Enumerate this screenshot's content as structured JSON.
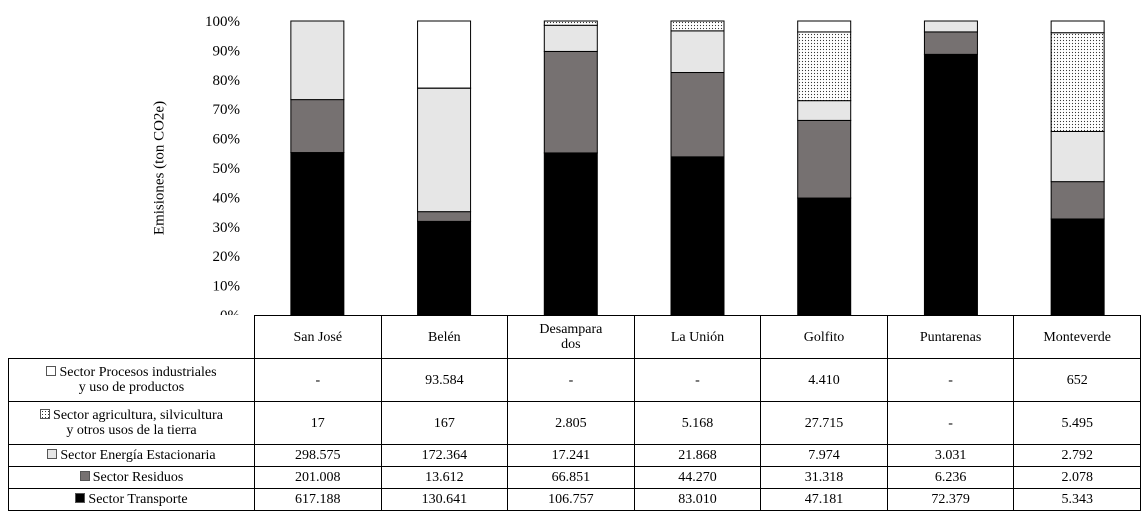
{
  "chart_data": {
    "type": "bar",
    "stacked": "percent",
    "ylabel": "Emisiones  (ton CO2e)",
    "ylim": [
      0,
      100
    ],
    "yticks": [
      "0%",
      "10%",
      "20%",
      "30%",
      "40%",
      "50%",
      "60%",
      "70%",
      "80%",
      "90%",
      "100%"
    ],
    "categories": [
      "San José",
      "Belén",
      "Desamparados",
      "La Unión",
      "Golfito",
      "Puntarenas",
      "Monteverde"
    ],
    "category_labels": [
      "San José",
      "Belén",
      "Desampara dos",
      "La Unión",
      "Golfito",
      "Puntarenas",
      "Monteverde"
    ],
    "series": [
      {
        "name": "Sector Transporte",
        "fill": "#000000",
        "values": [
          617188,
          130641,
          106757,
          83010,
          47181,
          72379,
          5343
        ],
        "labels": [
          "617.188",
          "130.641",
          "106.757",
          "83.010",
          "47.181",
          "72.379",
          "5.343"
        ]
      },
      {
        "name": "Sector Residuos",
        "fill": "#767171",
        "values": [
          201008,
          13612,
          66851,
          44270,
          31318,
          6236,
          2078
        ],
        "labels": [
          "201.008",
          "13.612",
          "66.851",
          "44.270",
          "31.318",
          "6.236",
          "2.078"
        ]
      },
      {
        "name": "Sector Energía Estacionaria",
        "fill": "#e6e6e6",
        "values": [
          298575,
          172364,
          17241,
          21868,
          7974,
          3031,
          2792
        ],
        "labels": [
          "298.575",
          "172.364",
          "17.241",
          "21.868",
          "7.974",
          "3.031",
          "2.792"
        ]
      },
      {
        "name": "Sector agricultura, silvicultura y otros usos de la tierra",
        "fill": "dots",
        "values": [
          17,
          167,
          2805,
          5168,
          27715,
          0,
          5495
        ],
        "labels": [
          "17",
          "167",
          "2.805",
          "5.168",
          "27.715",
          "-",
          "5.495"
        ]
      },
      {
        "name": "Sector Procesos industriales y uso de productos",
        "fill": "#ffffff",
        "values": [
          0,
          93584,
          0,
          0,
          4410,
          0,
          652
        ],
        "labels": [
          "-",
          "93.584",
          "-",
          "-",
          "4.410",
          "-",
          "652"
        ]
      }
    ],
    "legend": "table-rows",
    "grid": false
  },
  "table": {
    "rows": [
      {
        "id": "proc",
        "label_lines": [
          "Sector Procesos industriales",
          "y uso de productos"
        ],
        "series_index": 4
      },
      {
        "id": "agri",
        "label_lines": [
          "Sector agricultura, silvicultura",
          "y otros usos de la tierra"
        ],
        "series_index": 3
      },
      {
        "id": "ener",
        "label_lines": [
          "Sector Energía Estacionaria"
        ],
        "series_index": 2
      },
      {
        "id": "resi",
        "label_lines": [
          "Sector Residuos"
        ],
        "series_index": 1
      },
      {
        "id": "tran",
        "label_lines": [
          "Sector Transporte"
        ],
        "series_index": 0
      }
    ]
  }
}
